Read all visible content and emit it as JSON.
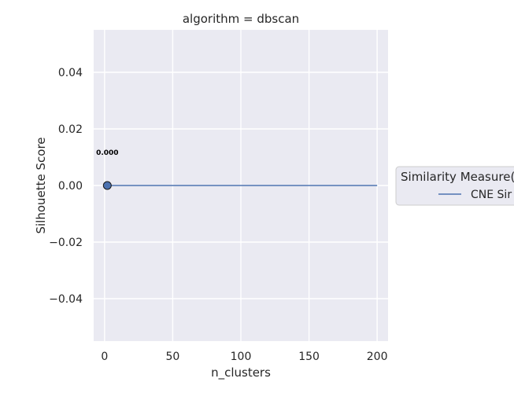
{
  "chart_data": {
    "type": "line",
    "title": "algorithm = dbscan",
    "xlabel": "n_clusters",
    "ylabel": "Silhouette Score",
    "xlim": [
      -8,
      208
    ],
    "ylim": [
      -0.055,
      0.055
    ],
    "xticks": [
      0,
      50,
      100,
      150,
      200
    ],
    "xtick_labels": [
      "0",
      "50",
      "100",
      "150",
      "200"
    ],
    "yticks": [
      -0.04,
      -0.02,
      0.0,
      0.02,
      0.04
    ],
    "ytick_labels": [
      "−0.04",
      "−0.02",
      "0.00",
      "0.02",
      "0.04"
    ],
    "grid": true,
    "legend_title": "Similarity Measure(",
    "legend_placement": "right",
    "series": [
      {
        "name": "CNE Sir",
        "color": "#4c72b0",
        "line": {
          "x": [
            2,
            200
          ],
          "y": [
            0.0,
            0.0
          ]
        },
        "markers": [
          {
            "x": 2,
            "y": 0.0,
            "label": "0.000"
          }
        ]
      }
    ]
  }
}
